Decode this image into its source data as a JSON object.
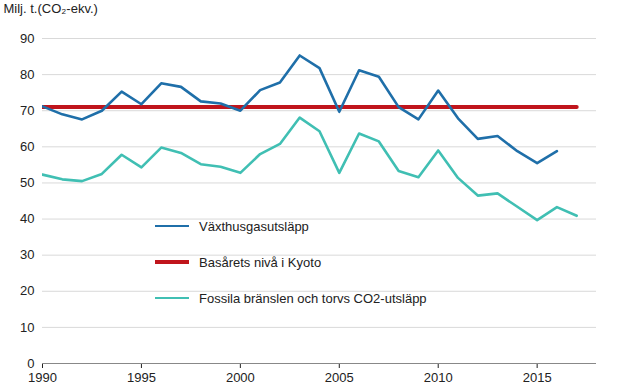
{
  "chart_data": {
    "type": "line",
    "y_label": "Milj. t.(CO₂-ekv.)",
    "x": [
      1990,
      1991,
      1992,
      1993,
      1994,
      1995,
      1996,
      1997,
      1998,
      1999,
      2000,
      2001,
      2002,
      2003,
      2004,
      2005,
      2006,
      2007,
      2008,
      2009,
      2010,
      2011,
      2012,
      2013,
      2014,
      2015,
      2016,
      2017
    ],
    "series": [
      {
        "name": "Växthusgasutsläpp",
        "color": "#1f6fa9",
        "values": [
          71.2,
          69,
          67.6,
          70,
          75.3,
          71.8,
          77.6,
          76.6,
          72.6,
          72,
          70,
          75.7,
          77.8,
          85.3,
          81.8,
          69.7,
          81.2,
          79.4,
          71,
          67.6,
          75.6,
          67.9,
          62.2,
          63,
          58.8,
          55.5,
          58.8,
          null
        ]
      },
      {
        "name": "Basårets nivå i Kyoto",
        "color": "#c0151c",
        "values": [
          71,
          71,
          71,
          71,
          71,
          71,
          71,
          71,
          71,
          71,
          71,
          71,
          71,
          71,
          71,
          71,
          71,
          71,
          71,
          71,
          71,
          71,
          71,
          71,
          71,
          71,
          71,
          71
        ]
      },
      {
        "name": "Fossila bränslen och torvs CO2-utsläpp",
        "color": "#40bfb3",
        "values": [
          52.3,
          51,
          50.5,
          52.5,
          57.8,
          54.3,
          59.8,
          58.3,
          55.2,
          54.5,
          52.8,
          58,
          60.8,
          68.1,
          64.3,
          52.8,
          63.7,
          61.5,
          53.3,
          51.6,
          59,
          51.4,
          46.5,
          47.1,
          43.4,
          39.7,
          43.3,
          40.9
        ]
      }
    ],
    "xlim": [
      1990,
      2018
    ],
    "xticks": [
      1990,
      1995,
      2000,
      2005,
      2010,
      2015
    ],
    "ylim": [
      0,
      90
    ],
    "yticks": [
      0,
      10,
      20,
      30,
      40,
      50,
      60,
      70,
      80,
      90
    ],
    "grid": true,
    "legend": "lower left"
  }
}
